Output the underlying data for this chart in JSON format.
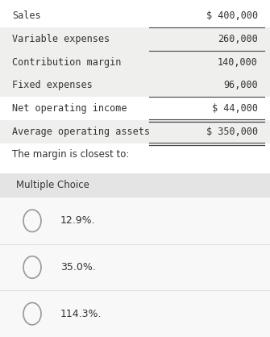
{
  "bg_color": "#ffffff",
  "table_bg_even": "#efefed",
  "table_bg_odd": "#ffffff",
  "mc_bg_color": "#f0f0f0",
  "mc_header_color": "#e4e4e4",
  "choice_bg_color": "#f8f8f8",
  "choice_sep_color": "#d8d8d8",
  "table_rows": [
    {
      "label": "Sales",
      "value": "$ 400,000",
      "top_line": false,
      "bottom_line": false,
      "alt": false
    },
    {
      "label": "Variable expenses",
      "value": "260,000",
      "top_line": true,
      "bottom_line": false,
      "alt": true
    },
    {
      "label": "Contribution margin",
      "value": "140,000",
      "top_line": true,
      "bottom_line": false,
      "alt": true
    },
    {
      "label": "Fixed expenses",
      "value": "96,000",
      "top_line": false,
      "bottom_line": false,
      "alt": true
    },
    {
      "label": "Net operating income",
      "value": "$ 44,000",
      "top_line": true,
      "bottom_line": true,
      "alt": false
    },
    {
      "label": "Average operating assets",
      "value": "$ 350,000",
      "top_line": false,
      "bottom_line": true,
      "alt": true
    }
  ],
  "question": "The margin is closest to:",
  "mc_label": "Multiple Choice",
  "choices": [
    "12.9%.",
    "35.0%.",
    "114.3%."
  ],
  "font_size_table": 8.5,
  "font_size_question": 8.5,
  "font_size_mc": 8.5,
  "font_size_choices": 9,
  "text_color": "#333333",
  "line_color": "#444444",
  "circle_color": "#999999"
}
